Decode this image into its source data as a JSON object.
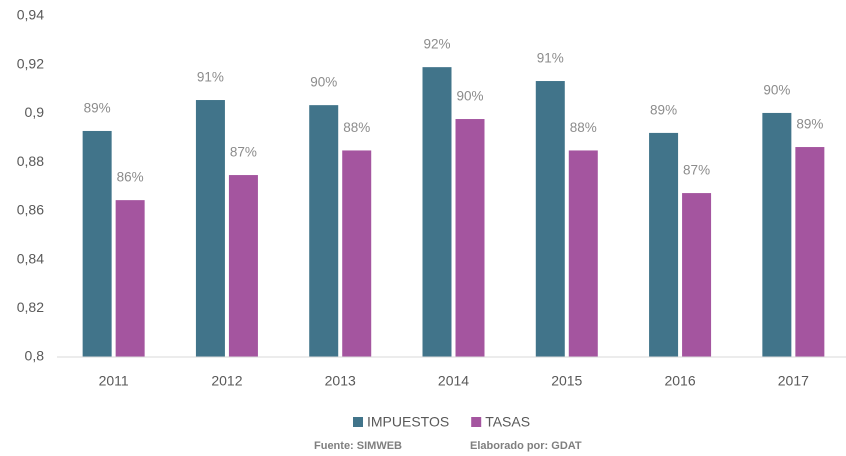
{
  "chart_data": {
    "type": "bar",
    "categories": [
      "2011",
      "2012",
      "2013",
      "2014",
      "2015",
      "2016",
      "2017"
    ],
    "series": [
      {
        "name": "IMPUESTOS",
        "color": "#41748a",
        "values": [
          0.8928,
          0.9055,
          0.9034,
          0.919,
          0.9133,
          0.892,
          0.9002
        ],
        "value_labels": [
          "89%",
          "91%",
          "90%",
          "92%",
          "91%",
          "89%",
          "90%"
        ]
      },
      {
        "name": "TASAS",
        "color": "#a4559f",
        "values": [
          0.8644,
          0.8747,
          0.8848,
          0.8977,
          0.8848,
          0.8673,
          0.8862
        ],
        "value_labels": [
          "86%",
          "87%",
          "88%",
          "90%",
          "88%",
          "87%",
          "89%"
        ]
      }
    ],
    "ylim": [
      0.8,
      0.94
    ],
    "yticks": [
      {
        "value": 0.8,
        "label": "0,8"
      },
      {
        "value": 0.82,
        "label": "0,82"
      },
      {
        "value": 0.84,
        "label": "0,84"
      },
      {
        "value": 0.86,
        "label": "0,86"
      },
      {
        "value": 0.88,
        "label": "0,88"
      },
      {
        "value": 0.9,
        "label": "0,9"
      },
      {
        "value": 0.92,
        "label": "0,92"
      },
      {
        "value": 0.94,
        "label": "0,94"
      }
    ],
    "grid": false,
    "legend": "bottom",
    "notes": [
      "Fuente: SIMWEB",
      "Elaborado por: GDAT"
    ]
  }
}
